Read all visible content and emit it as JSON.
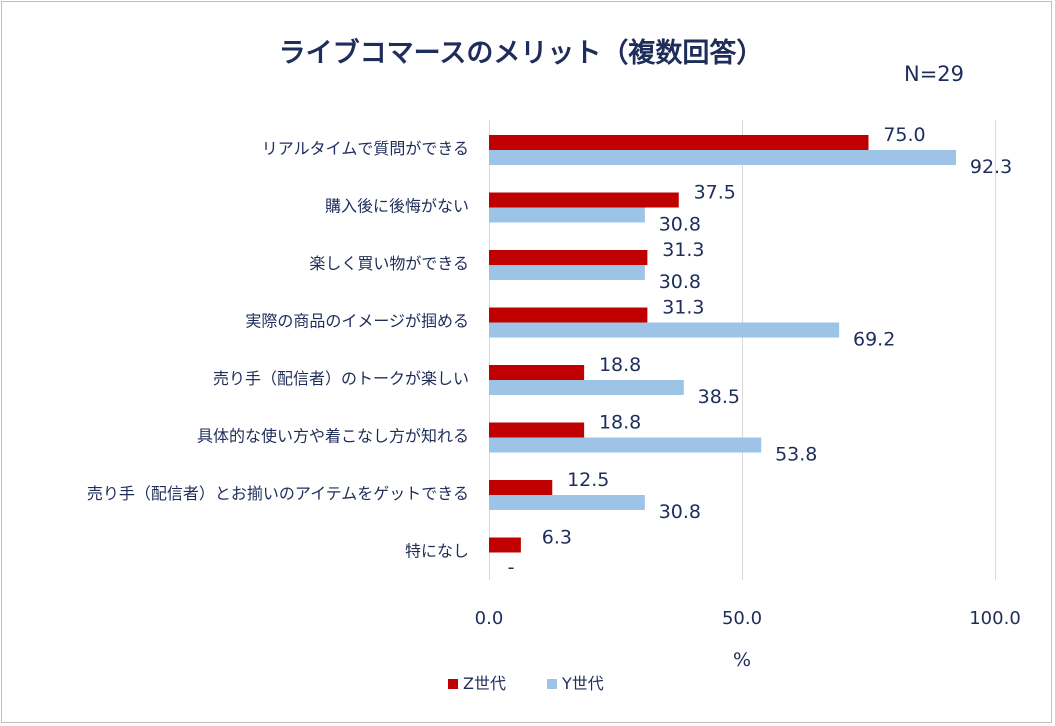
{
  "chart_data": {
    "type": "bar",
    "orientation": "horizontal",
    "title": "ライブコマースのメリット（複数回答）",
    "note": "N=29",
    "xlabel": "%",
    "ylabel": "",
    "xlim": [
      0,
      100
    ],
    "ticks": [
      "0.0",
      "50.0",
      "100.0"
    ],
    "tick_values": [
      0,
      50,
      100
    ],
    "grid": true,
    "legend_position": "bottom",
    "categories": [
      "リアルタイムで質問ができる",
      "購入後に後悔がない",
      "楽しく買い物ができる",
      "実際の商品のイメージが掴める",
      "売り手（配信者）のトークが楽しい",
      "具体的な使い方や着こなし方が知れる",
      "売り手（配信者）とお揃いのアイテムをゲットできる",
      "特になし"
    ],
    "series": [
      {
        "name": "Z世代",
        "color": "#c00000",
        "values": [
          75.0,
          37.5,
          31.3,
          31.3,
          18.8,
          18.8,
          12.5,
          6.3
        ],
        "labels": [
          "75.0",
          "37.5",
          "31.3",
          "31.3",
          "18.8",
          "18.8",
          "12.5",
          "6.3"
        ]
      },
      {
        "name": "Y世代",
        "color": "#9dc3e6",
        "values": [
          92.3,
          30.8,
          30.8,
          69.2,
          38.5,
          53.8,
          30.8,
          0
        ],
        "labels": [
          "92.3",
          "30.8",
          "30.8",
          "69.2",
          "38.5",
          "53.8",
          "30.8",
          "-"
        ]
      }
    ]
  }
}
